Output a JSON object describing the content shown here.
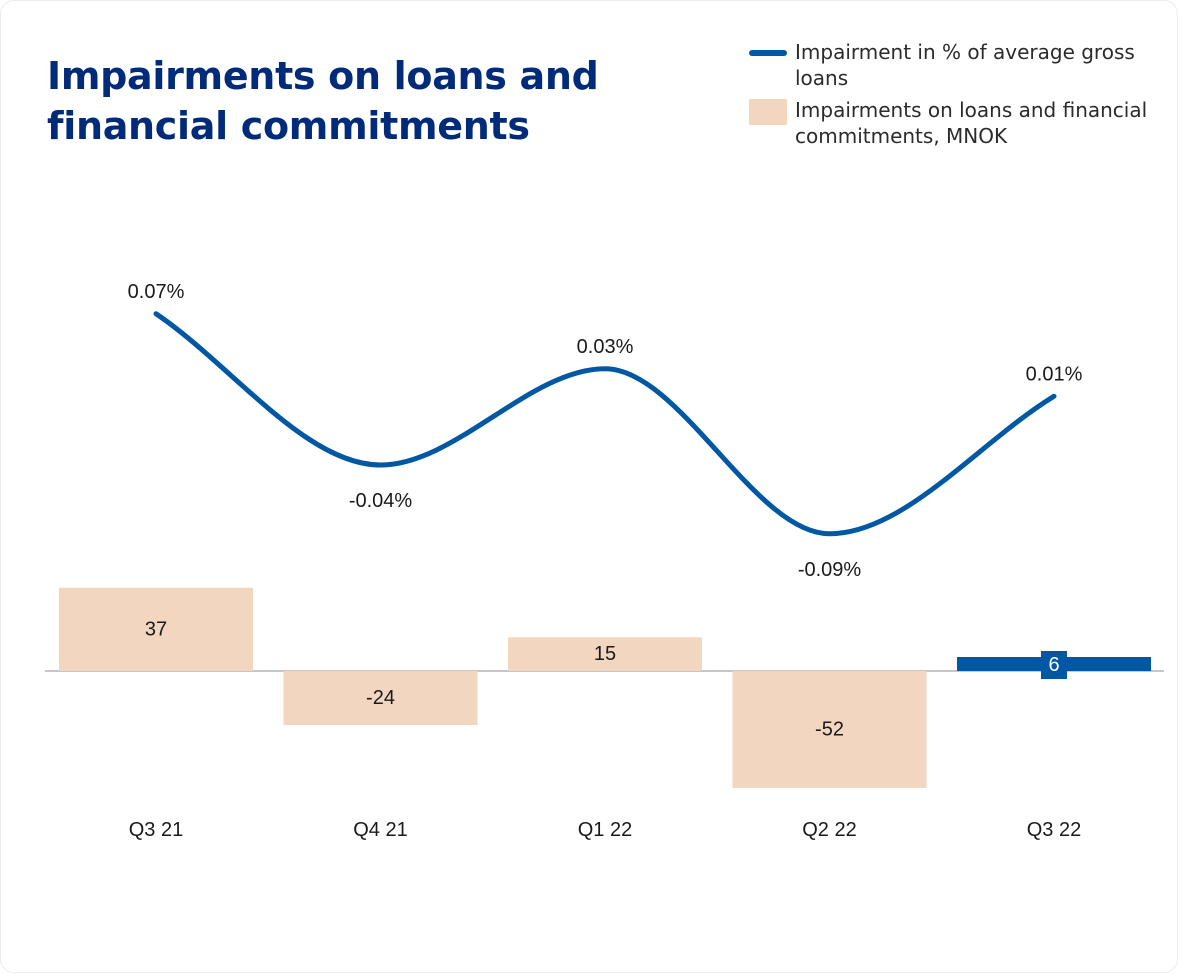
{
  "title": "Impairments on loans and financial commitments",
  "legend": {
    "line_label": "Impairment in % of average gross loans",
    "bar_label": "Impairments on loans and financial commitments, MNOK"
  },
  "colors": {
    "title": "#002a7a",
    "line": "#0057a3",
    "bar": "#f3d6c0",
    "bar_highlight": "#0057a3",
    "baseline": "#b3b3b3"
  },
  "chart_data": {
    "type": "bar",
    "categories": [
      "Q3 21",
      "Q4 21",
      "Q1 22",
      "Q2 22",
      "Q3 22"
    ],
    "series": [
      {
        "name": "Impairments on loans and financial commitments, MNOK",
        "type": "bar",
        "values": [
          37,
          -24,
          15,
          -52,
          6
        ],
        "labels": [
          "37",
          "-24",
          "15",
          "-52",
          "6"
        ],
        "highlight_index": 4
      },
      {
        "name": "Impairment in % of average gross loans",
        "type": "line",
        "values": [
          0.07,
          -0.04,
          0.03,
          -0.09,
          0.01
        ],
        "labels": [
          "0.07%",
          "-0.04%",
          "0.03%",
          "-0.09%",
          "0.01%"
        ]
      }
    ],
    "grid": false,
    "legend_position": "top-right"
  }
}
